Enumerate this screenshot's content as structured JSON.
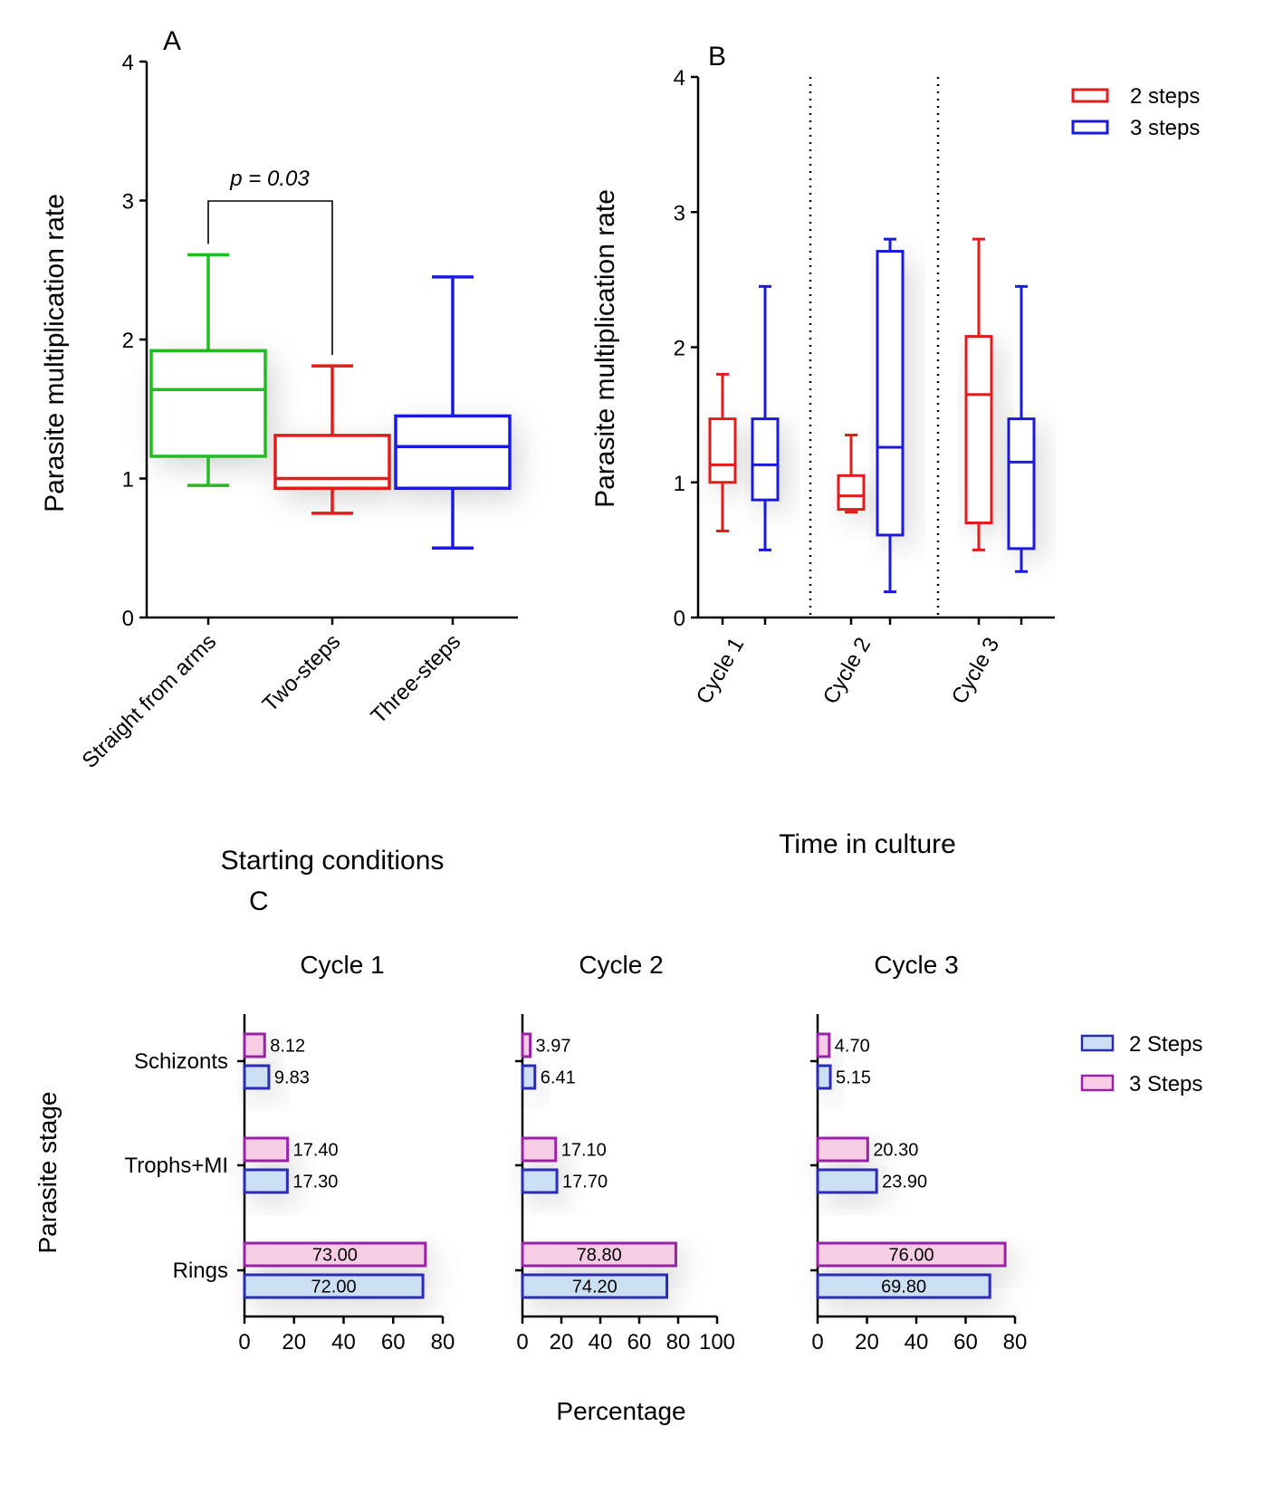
{
  "chart_data": [
    {
      "type": "box",
      "panel_label": "A",
      "xlabel": "Starting conditions",
      "ylabel": "Parasite multiplication rate",
      "ylim": [
        0,
        4
      ],
      "yticks": [
        "0",
        "1",
        "2",
        "3",
        "4"
      ],
      "categories": [
        "Straight from arms",
        "Two-steps",
        "Three-steps"
      ],
      "boxes": [
        {
          "name": "Straight from arms",
          "color": "#22bb22",
          "min": 0.95,
          "q1": 1.16,
          "median": 1.64,
          "q3": 1.92,
          "max": 2.61
        },
        {
          "name": "Two-steps",
          "color": "#e21b1b",
          "min": 0.75,
          "q1": 0.93,
          "median": 1.0,
          "q3": 1.31,
          "max": 1.81
        },
        {
          "name": "Three-steps",
          "color": "#1a1adf",
          "min": 0.5,
          "q1": 0.93,
          "median": 1.23,
          "q3": 1.45,
          "max": 2.45
        }
      ],
      "annotation": "p = 0.03"
    },
    {
      "type": "box",
      "panel_label": "B",
      "xlabel": "Time in culture",
      "ylabel": "Parasite multiplication rate",
      "ylim": [
        0,
        4
      ],
      "yticks": [
        "0",
        "1",
        "2",
        "3",
        "4"
      ],
      "categories": [
        "Cycle 1",
        "Cycle 2",
        "Cycle 3"
      ],
      "legend": [
        {
          "label": "2 steps",
          "color": "#e21b1b"
        },
        {
          "label": "3 steps",
          "color": "#1a1adf"
        }
      ],
      "series": [
        {
          "name": "2 steps",
          "color": "#e21b1b",
          "boxes": [
            {
              "min": 0.64,
              "q1": 1.0,
              "median": 1.13,
              "q3": 1.47,
              "max": 1.8
            },
            {
              "min": 0.78,
              "q1": 0.8,
              "median": 0.9,
              "q3": 1.05,
              "max": 1.35
            },
            {
              "min": 0.5,
              "q1": 0.7,
              "median": 1.65,
              "q3": 2.08,
              "max": 2.8
            }
          ]
        },
        {
          "name": "3 steps",
          "color": "#1a1adf",
          "boxes": [
            {
              "min": 0.5,
              "q1": 0.87,
              "median": 1.13,
              "q3": 1.47,
              "max": 2.45
            },
            {
              "min": 0.19,
              "q1": 0.61,
              "median": 1.26,
              "q3": 2.71,
              "max": 2.8
            },
            {
              "min": 0.34,
              "q1": 0.51,
              "median": 1.15,
              "q3": 1.47,
              "max": 2.45
            }
          ]
        }
      ]
    },
    {
      "type": "bar",
      "orientation": "horizontal",
      "panel_label": "C",
      "xlabel": "Percentage",
      "ylabel": "Parasite stage",
      "categories": [
        "Schizonts",
        "Trophs+MI",
        "Rings"
      ],
      "legend": [
        {
          "label": "2 Steps",
          "fill": "#cce0f5",
          "stroke": "#2b2bb8"
        },
        {
          "label": "3 Steps",
          "fill": "#f7cde6",
          "stroke": "#9a22a8"
        }
      ],
      "panels": [
        {
          "title": "Cycle 1",
          "xlim": [
            0,
            80
          ],
          "xticks": [
            "0",
            "20",
            "40",
            "60",
            "80"
          ],
          "series": [
            {
              "name": "3 Steps",
              "values": [
                8.12,
                17.4,
                73.0
              ],
              "labels": [
                "8.12",
                "17.40",
                "73.00"
              ]
            },
            {
              "name": "2 Steps",
              "values": [
                9.83,
                17.3,
                72.0
              ],
              "labels": [
                "9.83",
                "17.30",
                "72.00"
              ]
            }
          ]
        },
        {
          "title": "Cycle 2",
          "xlim": [
            0,
            100
          ],
          "xticks": [
            "0",
            "20",
            "40",
            "60",
            "80",
            "100"
          ],
          "series": [
            {
              "name": "3 Steps",
              "values": [
                3.97,
                17.1,
                78.8
              ],
              "labels": [
                "3.97",
                "17.10",
                "78.80"
              ]
            },
            {
              "name": "2 Steps",
              "values": [
                6.41,
                17.7,
                74.2
              ],
              "labels": [
                "6.41",
                "17.70",
                "74.20"
              ]
            }
          ]
        },
        {
          "title": "Cycle 3",
          "xlim": [
            0,
            80
          ],
          "xticks": [
            "0",
            "20",
            "40",
            "60",
            "80"
          ],
          "series": [
            {
              "name": "3 Steps",
              "values": [
                4.7,
                20.3,
                76.0
              ],
              "labels": [
                "4.70",
                "20.30",
                "76.00"
              ]
            },
            {
              "name": "2 Steps",
              "values": [
                5.15,
                23.9,
                69.8
              ],
              "labels": [
                "5.15",
                "23.90",
                "69.80"
              ]
            }
          ]
        }
      ]
    }
  ]
}
